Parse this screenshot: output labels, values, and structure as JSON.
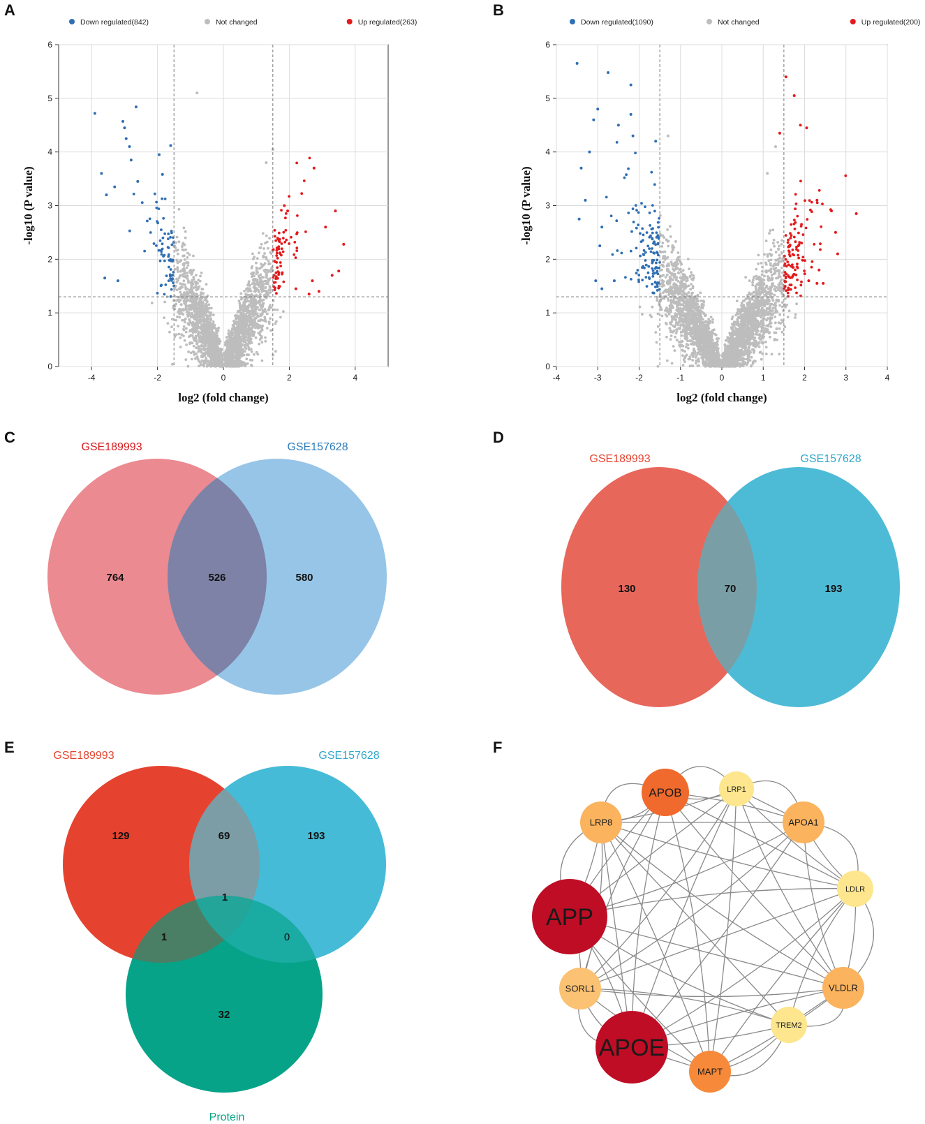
{
  "figure": {
    "panels": [
      "A",
      "B",
      "C",
      "D",
      "E",
      "F"
    ],
    "colors": {
      "down": "#2f6fb3",
      "not": "#bdbdbd",
      "up": "#e41a1c",
      "grid": "#dcdcdc"
    }
  },
  "chart_data": [
    {
      "id": "A",
      "type": "scatter",
      "subtype": "volcano",
      "legend": [
        {
          "label": "Down regulated(842)",
          "color": "#2f6fb3"
        },
        {
          "label": "Not changed",
          "color": "#bdbdbd"
        },
        {
          "label": "Up regulated(263)",
          "color": "#e41a1c"
        }
      ],
      "counts": {
        "down": 842,
        "up": 263
      },
      "xlabel": "log2 (fold change)",
      "ylabel": "-log10 (P value)",
      "xlim": [
        -5,
        5
      ],
      "ylim": [
        0,
        6
      ],
      "xticks": [
        "-4",
        "-2",
        "0",
        "2",
        "4"
      ],
      "yticks": [
        "0",
        "1",
        "2",
        "3",
        "4",
        "5",
        "6"
      ],
      "thresholds": {
        "fc": [
          -1.5,
          1.5
        ],
        "p": 1.3
      },
      "down_points": [
        [
          -3.9,
          4.72
        ],
        [
          -2.65,
          4.84
        ],
        [
          -3.05,
          4.57
        ],
        [
          -3.0,
          4.45
        ],
        [
          -2.95,
          4.25
        ],
        [
          -2.85,
          4.1
        ],
        [
          -2.8,
          3.85
        ],
        [
          -1.6,
          4.12
        ],
        [
          -1.95,
          3.95
        ],
        [
          -3.7,
          3.6
        ],
        [
          -3.55,
          3.2
        ],
        [
          -3.3,
          3.35
        ],
        [
          -2.6,
          3.45
        ],
        [
          -1.85,
          3.58
        ],
        [
          -3.6,
          1.65
        ],
        [
          -3.2,
          1.6
        ]
      ],
      "up_points": [
        [
          2.75,
          3.7
        ],
        [
          1.85,
          3.0
        ],
        [
          3.4,
          2.9
        ],
        [
          3.1,
          2.6
        ],
        [
          2.7,
          1.6
        ],
        [
          3.65,
          2.28
        ],
        [
          3.5,
          1.78
        ],
        [
          3.3,
          1.7
        ],
        [
          2.9,
          1.4
        ],
        [
          2.6,
          1.35
        ],
        [
          2.2,
          1.45
        ],
        [
          1.95,
          2.9
        ]
      ],
      "not_points": [
        [
          -0.8,
          5.1
        ],
        [
          1.5,
          4.05
        ],
        [
          1.3,
          3.8
        ]
      ]
    },
    {
      "id": "B",
      "type": "scatter",
      "subtype": "volcano",
      "legend": [
        {
          "label": "Down regulated(1090)",
          "color": "#2f6fb3"
        },
        {
          "label": "Not changed",
          "color": "#bdbdbd"
        },
        {
          "label": "Up regulated(200)",
          "color": "#e41a1c"
        }
      ],
      "counts": {
        "down": 1090,
        "up": 200
      },
      "xlabel": "log2 (fold change)",
      "ylabel": "-log10 (P value)",
      "xlim": [
        -4,
        4
      ],
      "ylim": [
        0,
        6
      ],
      "xticks": [
        "-4",
        "-3",
        "-2",
        "-1",
        "0",
        "1",
        "2",
        "3",
        "4"
      ],
      "yticks": [
        "0",
        "1",
        "2",
        "3",
        "4",
        "5",
        "6"
      ],
      "thresholds": {
        "fc": [
          -1.5,
          1.5
        ],
        "p": 1.3
      },
      "down_points": [
        [
          -3.5,
          5.65
        ],
        [
          -2.75,
          5.48
        ],
        [
          -2.2,
          5.25
        ],
        [
          -3.0,
          4.8
        ],
        [
          -2.5,
          4.5
        ],
        [
          -3.1,
          4.6
        ],
        [
          -2.15,
          4.3
        ],
        [
          -1.6,
          4.2
        ],
        [
          -3.2,
          4.0
        ],
        [
          -3.4,
          3.7
        ],
        [
          -3.3,
          3.1
        ],
        [
          -3.45,
          2.75
        ],
        [
          -2.9,
          2.6
        ],
        [
          -2.95,
          2.25
        ],
        [
          -2.6,
          1.6
        ],
        [
          -2.9,
          1.45
        ],
        [
          -3.05,
          1.6
        ],
        [
          -2.2,
          4.7
        ]
      ],
      "up_points": [
        [
          1.55,
          5.4
        ],
        [
          1.75,
          5.05
        ],
        [
          1.9,
          4.5
        ],
        [
          2.05,
          4.45
        ],
        [
          1.4,
          4.35
        ],
        [
          2.3,
          3.1
        ],
        [
          2.65,
          2.9
        ],
        [
          3.25,
          2.85
        ],
        [
          2.75,
          2.5
        ],
        [
          2.8,
          2.1
        ],
        [
          2.35,
          1.8
        ],
        [
          2.1,
          1.6
        ],
        [
          2.3,
          1.55
        ],
        [
          2.45,
          1.55
        ]
      ],
      "not_points": [
        [
          -1.3,
          4.3
        ],
        [
          1.3,
          4.1
        ],
        [
          1.1,
          3.6
        ]
      ]
    },
    {
      "id": "C",
      "type": "venn",
      "sets": [
        {
          "label": "GSE189993",
          "color": "#e8767d",
          "label_color": "#d7191c"
        },
        {
          "label": "GSE157628",
          "color": "#84bbe3",
          "label_color": "#2b7bba"
        }
      ],
      "overlap_color": "#7d82a6",
      "regions": {
        "left_only": "764",
        "both": "526",
        "right_only": "580"
      }
    },
    {
      "id": "D",
      "type": "venn",
      "sets": [
        {
          "label": "GSE189993",
          "color": "#e8675b",
          "label_color": "#e8432f"
        },
        {
          "label": "GSE157628",
          "color": "#4ebbd6",
          "label_color": "#2fa7c9"
        }
      ],
      "overlap_color": "#7a9ea6",
      "regions": {
        "left_only": "130",
        "both": "70",
        "right_only": "193"
      }
    },
    {
      "id": "E",
      "type": "venn",
      "sets": [
        {
          "label": "GSE189993",
          "color": "#e5432f",
          "label_color": "#e5432f"
        },
        {
          "label": "GSE157628",
          "color": "#45bbd8",
          "label_color": "#2fa7c9"
        },
        {
          "label": "Protein",
          "color": "#06a388",
          "label_color": "#06a388"
        }
      ],
      "regions": {
        "a_only": "129",
        "ab": "69",
        "b_only": "193",
        "abc": "1",
        "ac": "1",
        "bc": "0",
        "c_only": "32"
      }
    },
    {
      "id": "F",
      "type": "network",
      "nodes": [
        {
          "label": "APOB",
          "color": "#ef6a2c"
        },
        {
          "label": "LRP1",
          "color": "#fde68d"
        },
        {
          "label": "LRP8",
          "color": "#fbb35e"
        },
        {
          "label": "APOA1",
          "color": "#fbb35e"
        },
        {
          "label": "APP",
          "color": "#be0d24"
        },
        {
          "label": "LDLR",
          "color": "#fde68d"
        },
        {
          "label": "SORL1",
          "color": "#fbc273"
        },
        {
          "label": "VLDLR",
          "color": "#fbb35e"
        },
        {
          "label": "APOE",
          "color": "#be0d24"
        },
        {
          "label": "MAPT",
          "color": "#f68a3a"
        },
        {
          "label": "TREM2",
          "color": "#fde68d"
        }
      ],
      "edges": [
        [
          "APP",
          "APOE"
        ],
        [
          "APP",
          "APOB"
        ],
        [
          "APP",
          "LRP1"
        ],
        [
          "APP",
          "LRP8"
        ],
        [
          "APP",
          "APOA1"
        ],
        [
          "APP",
          "LDLR"
        ],
        [
          "APP",
          "SORL1"
        ],
        [
          "APP",
          "VLDLR"
        ],
        [
          "APP",
          "MAPT"
        ],
        [
          "APP",
          "TREM2"
        ],
        [
          "APOE",
          "APOB"
        ],
        [
          "APOE",
          "LRP1"
        ],
        [
          "APOE",
          "LRP8"
        ],
        [
          "APOE",
          "APOA1"
        ],
        [
          "APOE",
          "LDLR"
        ],
        [
          "APOE",
          "SORL1"
        ],
        [
          "APOE",
          "VLDLR"
        ],
        [
          "APOE",
          "MAPT"
        ],
        [
          "APOE",
          "TREM2"
        ],
        [
          "APOB",
          "LRP1"
        ],
        [
          "APOB",
          "LRP8"
        ],
        [
          "APOB",
          "APOA1"
        ],
        [
          "APOB",
          "LDLR"
        ],
        [
          "APOB",
          "VLDLR"
        ],
        [
          "APOB",
          "SORL1"
        ],
        [
          "APOB",
          "MAPT"
        ],
        [
          "LRP1",
          "LRP8"
        ],
        [
          "LRP1",
          "APOA1"
        ],
        [
          "LRP1",
          "LDLR"
        ],
        [
          "LRP1",
          "VLDLR"
        ],
        [
          "LRP1",
          "SORL1"
        ],
        [
          "LRP1",
          "MAPT"
        ],
        [
          "LRP8",
          "APOA1"
        ],
        [
          "LRP8",
          "LDLR"
        ],
        [
          "LRP8",
          "VLDLR"
        ],
        [
          "LRP8",
          "SORL1"
        ],
        [
          "LRP8",
          "MAPT"
        ],
        [
          "LRP8",
          "TREM2"
        ],
        [
          "APOA1",
          "LDLR"
        ],
        [
          "APOA1",
          "VLDLR"
        ],
        [
          "APOA1",
          "SORL1"
        ],
        [
          "LDLR",
          "VLDLR"
        ],
        [
          "LDLR",
          "SORL1"
        ],
        [
          "LDLR",
          "MAPT"
        ],
        [
          "LDLR",
          "TREM2"
        ],
        [
          "VLDLR",
          "SORL1"
        ],
        [
          "VLDLR",
          "MAPT"
        ],
        [
          "VLDLR",
          "TREM2"
        ],
        [
          "SORL1",
          "MAPT"
        ],
        [
          "MAPT",
          "TREM2"
        ],
        [
          "SORL1",
          "TREM2"
        ]
      ]
    }
  ]
}
